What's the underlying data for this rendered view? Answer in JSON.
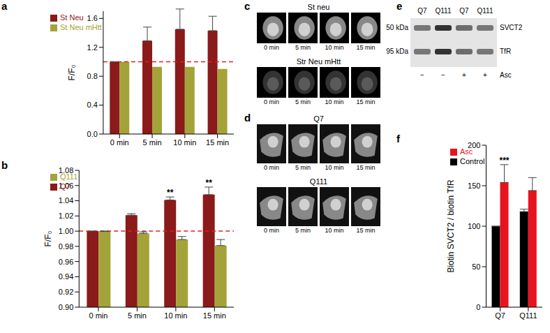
{
  "chart_data": [
    {
      "panel": "a",
      "type": "bar",
      "categories": [
        "0 min",
        "5 min",
        "10 min",
        "15 min"
      ],
      "series": [
        {
          "name": "St Neu",
          "color": "#8b1a1a",
          "values": [
            1.0,
            1.29,
            1.45,
            1.43
          ],
          "errors": [
            0,
            0.19,
            0.28,
            0.2
          ]
        },
        {
          "name": "St Neu mHtt",
          "color": "#a3a33a",
          "values": [
            1.0,
            0.93,
            0.93,
            0.9
          ]
        }
      ],
      "y_label": "F/F₀",
      "ylim": [
        0,
        1.7
      ],
      "yticks": [
        {
          "value": 0,
          "label": "0.0"
        },
        {
          "value": 0.4,
          "label": "0.4"
        },
        {
          "value": 0.8,
          "label": "0.8"
        },
        {
          "value": 1.2,
          "label": "1.2"
        },
        {
          "value": 1.6,
          "label": "1.6"
        }
      ],
      "reference_line": 1,
      "legend": "upper left"
    },
    {
      "panel": "b",
      "type": "bar",
      "categories": [
        "0 min",
        "5 min",
        "10 min",
        "15 min"
      ],
      "series": [
        {
          "name": "Q7",
          "color": "#8b1a1a",
          "values": [
            1.0,
            1.021,
            1.041,
            1.048
          ],
          "errors": [
            0,
            0.002,
            0.004,
            0.01
          ],
          "significance": [
            null,
            null,
            "**",
            "**"
          ]
        },
        {
          "name": "Q111",
          "color": "#a3a33a",
          "values": [
            1.0,
            0.997,
            0.989,
            0.981
          ],
          "errors": [
            0,
            0.002,
            0.004,
            0.008
          ]
        }
      ],
      "y_label": "F/F₀",
      "ylim": [
        0.9,
        1.08
      ],
      "yticks": [
        {
          "value": 0.9,
          "label": "0.90"
        },
        {
          "value": 0.92,
          "label": "0.92"
        },
        {
          "value": 0.94,
          "label": "0.94"
        },
        {
          "value": 0.96,
          "label": "0.96"
        },
        {
          "value": 0.98,
          "label": "0.98"
        },
        {
          "value": 1.0,
          "label": "1.00"
        },
        {
          "value": 1.02,
          "label": "1.02"
        },
        {
          "value": 1.04,
          "label": "1.04"
        },
        {
          "value": 1.06,
          "label": "1.06"
        },
        {
          "value": 1.08,
          "label": "1.08"
        }
      ],
      "reference_line": 1,
      "legend": "upper left"
    },
    {
      "panel": "f",
      "type": "bar",
      "categories": [
        "Q7",
        "Q111"
      ],
      "series": [
        {
          "name": "Control",
          "color": "#000000",
          "values": [
            100,
            118
          ],
          "errors": [
            0,
            3
          ]
        },
        {
          "name": "Asc",
          "color": "#e8141b",
          "values": [
            154,
            144
          ],
          "errors": [
            22,
            16
          ],
          "significance": [
            "***",
            null
          ]
        }
      ],
      "y_label": "Biotin SVCT2 / biotin TfR",
      "ylim": [
        0,
        200
      ],
      "yticks": [
        0,
        50,
        100,
        150,
        200
      ],
      "legend": "upper left"
    }
  ],
  "panels": [
    {
      "panel": "c",
      "rows": [
        {
          "label": "St neu",
          "times": [
            "0 min",
            "5 min",
            "10 min",
            "15 min"
          ]
        },
        {
          "label": "Str Neu mHtt",
          "times": [
            "0 min",
            "5 min",
            "10 min",
            "15 min"
          ]
        }
      ]
    },
    {
      "panel": "d",
      "rows": [
        {
          "label": "Q7",
          "times": [
            "0 min",
            "5 min",
            "10 min",
            "15 min"
          ]
        },
        {
          "label": "Q111",
          "times": [
            "0 min",
            "5 min",
            "10 min",
            "15 min"
          ]
        }
      ]
    },
    {
      "panel": "e",
      "lanes": [
        "Q7",
        "Q111",
        "Q7",
        "Q111"
      ],
      "bands": [
        {
          "size": "50 kDa",
          "protein": "SVCT2"
        },
        {
          "size": "95 kDa",
          "protein": "TfR"
        }
      ],
      "treatment": {
        "label": "Asc",
        "lanes": [
          "−",
          "−",
          "+",
          "+"
        ]
      }
    }
  ]
}
